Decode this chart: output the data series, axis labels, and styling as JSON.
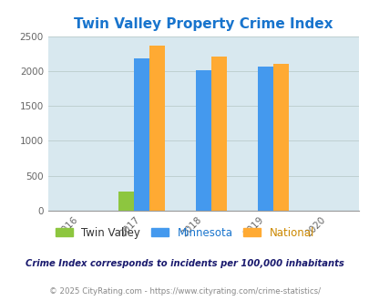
{
  "title": "Twin Valley Property Crime Index",
  "title_color": "#1874CD",
  "years": [
    2016,
    2017,
    2018,
    2019,
    2020
  ],
  "bar_years": [
    2017,
    2018,
    2019
  ],
  "twin_valley": [
    270,
    0,
    0
  ],
  "minnesota": [
    2180,
    2005,
    2065
  ],
  "national": [
    2360,
    2205,
    2105
  ],
  "twin_valley_color": "#8DC63F",
  "minnesota_color": "#4499EE",
  "national_color": "#FFAA33",
  "background_color": "#D8E8EF",
  "ylim": [
    0,
    2500
  ],
  "yticks": [
    0,
    500,
    1000,
    1500,
    2000,
    2500
  ],
  "bar_width": 0.25,
  "legend_labels": [
    "Twin Valley",
    "Minnesota",
    "National"
  ],
  "legend_label_colors": [
    "#333333",
    "#1874CD",
    "#CC8800"
  ],
  "footnote1": "Crime Index corresponds to incidents per 100,000 inhabitants",
  "footnote2": "© 2025 CityRating.com - https://www.cityrating.com/crime-statistics/",
  "footnote1_color": "#1a1a6e",
  "footnote2_color": "#888888"
}
